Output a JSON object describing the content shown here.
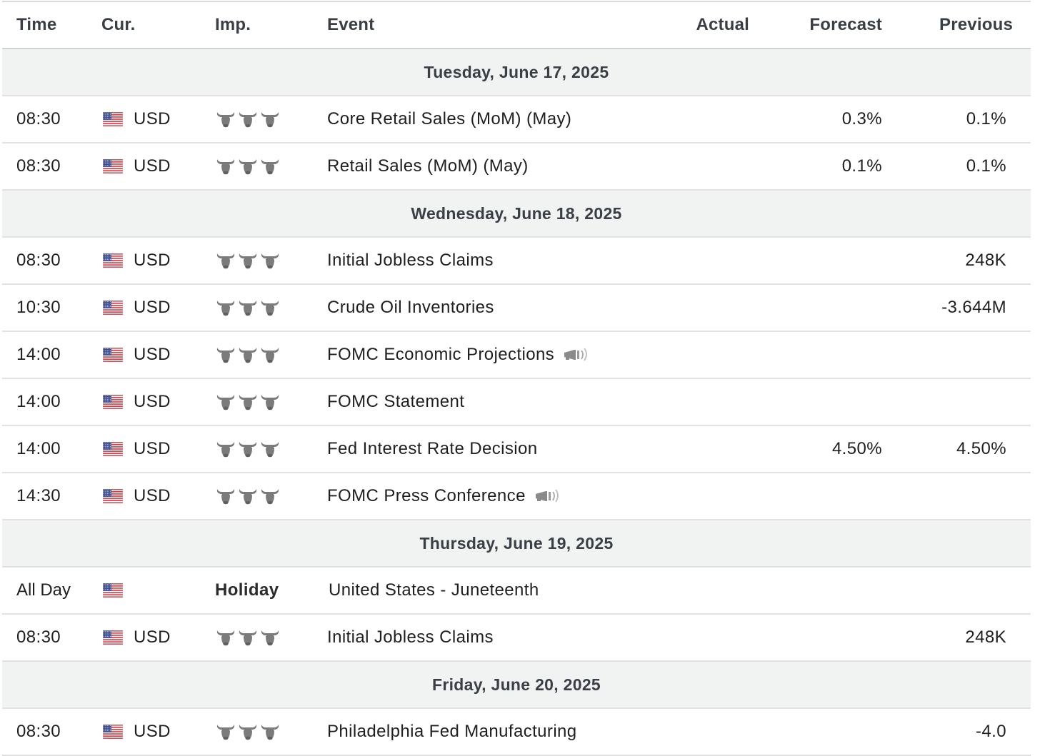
{
  "table": {
    "headers": {
      "time": "Time",
      "currency": "Cur.",
      "importance": "Imp.",
      "event": "Event",
      "actual": "Actual",
      "forecast": "Forecast",
      "previous": "Previous"
    },
    "days": [
      {
        "date": "Tuesday, June 17, 2025",
        "events": [
          {
            "time": "08:30",
            "currency": "USD",
            "importance": 3,
            "event": "Core Retail Sales (MoM) (May)",
            "actual": "",
            "forecast": "0.3%",
            "previous": "0.1%"
          },
          {
            "time": "08:30",
            "currency": "USD",
            "importance": 3,
            "event": "Retail Sales (MoM) (May)",
            "actual": "",
            "forecast": "0.1%",
            "previous": "0.1%"
          }
        ]
      },
      {
        "date": "Wednesday, June 18, 2025",
        "events": [
          {
            "time": "08:30",
            "currency": "USD",
            "importance": 3,
            "event": "Initial Jobless Claims",
            "actual": "",
            "forecast": "",
            "previous": "248K"
          },
          {
            "time": "10:30",
            "currency": "USD",
            "importance": 3,
            "event": "Crude Oil Inventories",
            "actual": "",
            "forecast": "",
            "previous": "-3.644M"
          },
          {
            "time": "14:00",
            "currency": "USD",
            "importance": 3,
            "event": "FOMC Economic Projections",
            "speech": true,
            "actual": "",
            "forecast": "",
            "previous": ""
          },
          {
            "time": "14:00",
            "currency": "USD",
            "importance": 3,
            "event": "FOMC Statement",
            "actual": "",
            "forecast": "",
            "previous": ""
          },
          {
            "time": "14:00",
            "currency": "USD",
            "importance": 3,
            "event": "Fed Interest Rate Decision",
            "actual": "",
            "forecast": "4.50%",
            "previous": "4.50%"
          },
          {
            "time": "14:30",
            "currency": "USD",
            "importance": 3,
            "event": "FOMC Press Conference",
            "speech": true,
            "actual": "",
            "forecast": "",
            "previous": ""
          }
        ]
      },
      {
        "date": "Thursday, June 19, 2025",
        "events": [
          {
            "time": "All Day",
            "currency": "",
            "holiday": "Holiday",
            "event": "United States - Juneteenth",
            "actual": "",
            "forecast": "",
            "previous": ""
          },
          {
            "time": "08:30",
            "currency": "USD",
            "importance": 3,
            "event": "Initial Jobless Claims",
            "actual": "",
            "forecast": "",
            "previous": "248K"
          }
        ]
      },
      {
        "date": "Friday, June 20, 2025",
        "events": [
          {
            "time": "08:30",
            "currency": "USD",
            "importance": 3,
            "event": "Philadelphia Fed Manufacturing",
            "actual": "",
            "forecast": "",
            "previous": "-4.0"
          }
        ]
      }
    ]
  },
  "icons": {
    "flag": "us-flag-icon",
    "importance": "bull-icon",
    "speech": "speaker-icon"
  },
  "colors": {
    "header_text": "#3a3f46",
    "date_row_bg": "#f1f2f2",
    "row_border": "#e2e2e2",
    "bull_icon": "#7a7a7a"
  }
}
